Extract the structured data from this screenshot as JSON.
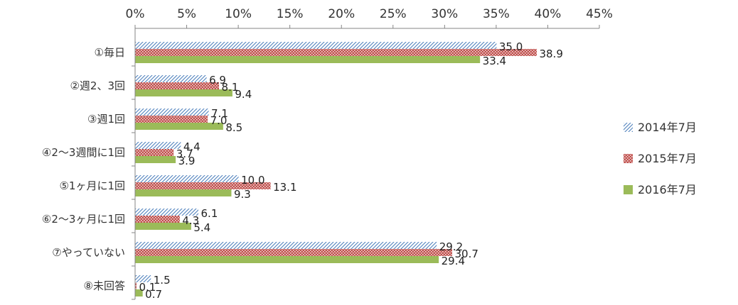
{
  "chart_data": {
    "type": "bar",
    "orientation": "horizontal",
    "categories": [
      "①毎日",
      "②週2、3回",
      "③週1回",
      "④2～3週間に1回",
      "⑤1ヶ月に1回",
      "⑥2～3ヶ月に1回",
      "⑦やっていない",
      "⑧未回答"
    ],
    "series": [
      {
        "name": "2014年7月",
        "values": [
          35.0,
          6.9,
          7.1,
          4.4,
          10.0,
          6.1,
          29.2,
          1.5
        ],
        "color": "#4f81bd",
        "pattern": "diagonal-stripes"
      },
      {
        "name": "2015年7月",
        "values": [
          38.9,
          8.1,
          7.0,
          3.7,
          13.1,
          4.3,
          30.7,
          0.1
        ],
        "color": "#c0504d",
        "pattern": "dots"
      },
      {
        "name": "2016年7月",
        "values": [
          33.4,
          9.4,
          8.5,
          3.9,
          9.3,
          5.4,
          29.4,
          0.7
        ],
        "color": "#9bbb59",
        "pattern": "solid"
      }
    ],
    "x_ticks": [
      "0%",
      "5%",
      "10%",
      "15%",
      "20%",
      "25%",
      "30%",
      "35%",
      "40%",
      "45%"
    ],
    "xlim": [
      0,
      45
    ],
    "x_axis_position": "top",
    "grid": false,
    "legend": "right",
    "title": "",
    "xlabel": "",
    "ylabel": ""
  }
}
